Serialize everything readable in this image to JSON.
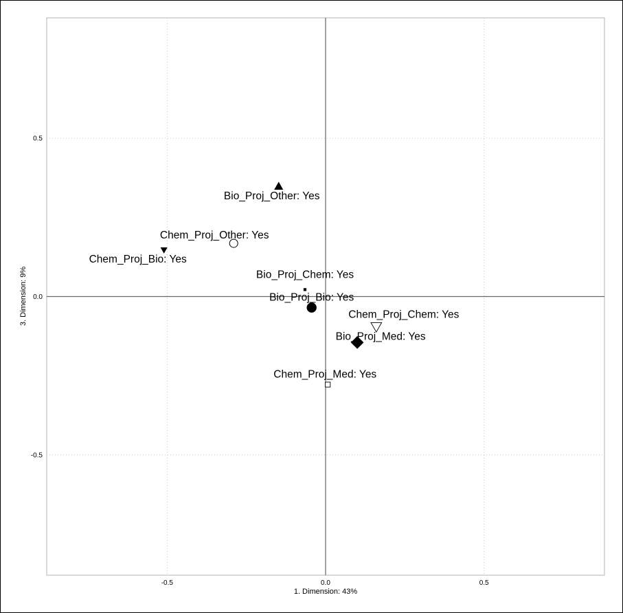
{
  "chart_data": {
    "type": "scatter",
    "title": "",
    "xlabel": "1. Dimension: 43%",
    "ylabel": "3. Dimension: 9%",
    "xlim": [
      -0.88,
      0.88
    ],
    "ylim": [
      -0.88,
      0.88
    ],
    "xticks": [
      -0.5,
      0.0,
      0.5
    ],
    "yticks": [
      -0.5,
      0.0,
      0.5
    ],
    "xtick_labels": [
      "-0.5",
      "0.0",
      "0.5"
    ],
    "ytick_labels": [
      "-0.5",
      "0.0",
      "0.5"
    ],
    "grid": "dotted",
    "reference_lines": [
      0,
      0
    ],
    "points": [
      {
        "label": "Bio_Proj_Other: Yes",
        "x": -0.148,
        "y": 0.348,
        "marker": "triangle-up-filled",
        "size": 1.1
      },
      {
        "label": "Chem_Proj_Other: Yes",
        "x": -0.29,
        "y": 0.168,
        "marker": "circle-open",
        "size": 1.0
      },
      {
        "label": "Chem_Proj_Bio: Yes",
        "x": -0.51,
        "y": 0.147,
        "marker": "triangle-down-filled",
        "size": 0.85
      },
      {
        "label": "Bio_Proj_Chem: Yes",
        "x": -0.065,
        "y": 0.022,
        "marker": "square-filled",
        "size": 0.35
      },
      {
        "label": "Bio_Proj_Bio: Yes",
        "x": -0.044,
        "y": -0.035,
        "marker": "circle-filled",
        "size": 1.2
      },
      {
        "label": "Chem_Proj_Chem: Yes",
        "x": 0.16,
        "y": -0.095,
        "marker": "triangle-down-open",
        "size": 1.3
      },
      {
        "label": "Bio_Proj_Med: Yes",
        "x": 0.1,
        "y": -0.145,
        "marker": "diamond-filled",
        "size": 1.35
      },
      {
        "label": "Chem_Proj_Med: Yes",
        "x": 0.007,
        "y": -0.278,
        "marker": "square-open",
        "size": 0.6
      }
    ]
  }
}
